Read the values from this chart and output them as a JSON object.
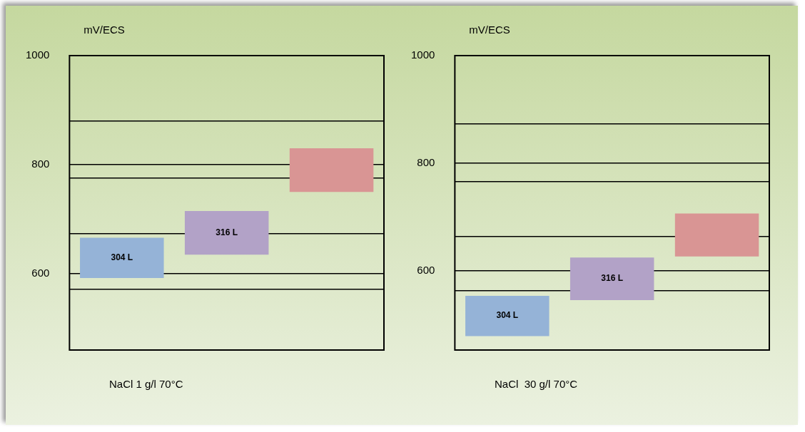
{
  "chart_data": [
    {
      "type": "bar",
      "ylabel": "mV/ECS",
      "categories": [
        "304 L",
        "316 L",
        null
      ],
      "base": [
        592,
        635,
        750
      ],
      "values": [
        74,
        80,
        80
      ],
      "colors": [
        "#95b3d7",
        "#b2a2c7",
        "#d99594"
      ],
      "ylim": [
        460,
        1000
      ],
      "yticks": [
        {
          "value": 572,
          "label": null
        },
        600,
        {
          "value": 673,
          "label": null
        },
        {
          "value": 775,
          "label": null
        },
        800,
        {
          "value": 880,
          "label": null
        },
        1000
      ],
      "grid": true,
      "annotations": [
        "NaCl 1 g/l 70°C"
      ]
    },
    {
      "type": "bar",
      "ylabel": "mV/ECS",
      "categories": [
        "304 L",
        "316 L",
        null
      ],
      "base": [
        478,
        545,
        626
      ],
      "values": [
        75,
        79,
        80
      ],
      "colors": [
        "#95b3d7",
        "#b2a2c7",
        "#d99594"
      ],
      "ylim": [
        452,
        1000
      ],
      "yticks": [
        {
          "value": 563,
          "label": null
        },
        600,
        {
          "value": 663,
          "label": null
        },
        {
          "value": 766,
          "label": null
        },
        800,
        {
          "value": 873,
          "label": null
        },
        1000
      ],
      "grid": true,
      "annotations": [
        "NaCl  30 g/l 70°C"
      ]
    }
  ]
}
